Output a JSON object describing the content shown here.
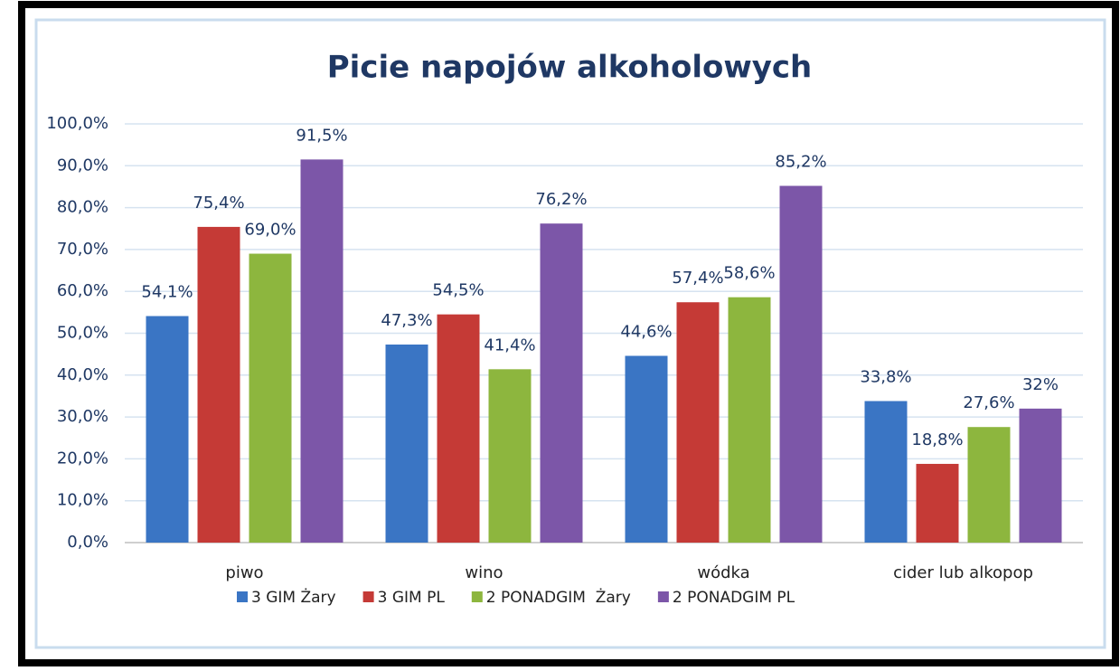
{
  "chart_data": {
    "type": "bar",
    "title": "Picie napojów alkoholowych",
    "categories": [
      "piwo",
      "wino",
      "wódka",
      "cider lub alkopop"
    ],
    "series": [
      {
        "name": "3 GIM Żary",
        "color": "#3a75c4",
        "values": [
          54.1,
          47.3,
          44.6,
          33.8
        ],
        "value_labels": [
          "54,1%",
          "47,3%",
          "44,6%",
          "33,8%"
        ]
      },
      {
        "name": "3 GIM PL",
        "color": "#c53a36",
        "values": [
          75.4,
          54.5,
          57.4,
          18.8
        ],
        "value_labels": [
          "75,4%",
          "54,5%",
          "57,4%",
          "18,8%"
        ]
      },
      {
        "name": "2 PONADGIM  Żary",
        "color": "#8db63e",
        "values": [
          69.0,
          41.4,
          58.6,
          27.6
        ],
        "value_labels": [
          "69,0%",
          "41,4%",
          "58,6%",
          "27,6%"
        ]
      },
      {
        "name": "2 PONADGIM PL",
        "color": "#7c56a8",
        "values": [
          91.5,
          76.2,
          85.2,
          32
        ],
        "value_labels": [
          "91,5%",
          "76,2%",
          "85,2%",
          "32%"
        ]
      }
    ],
    "ylim": [
      0,
      100
    ],
    "yticks": [
      {
        "value": 0,
        "label": "0,0%"
      },
      {
        "value": 10,
        "label": "10,0%"
      },
      {
        "value": 20,
        "label": "20,0%"
      },
      {
        "value": 30,
        "label": "30,0%"
      },
      {
        "value": 40,
        "label": "40,0%"
      },
      {
        "value": 50,
        "label": "50,0%"
      },
      {
        "value": 60,
        "label": "60,0%"
      },
      {
        "value": 70,
        "label": "70,0%"
      },
      {
        "value": 80,
        "label": "80,0%"
      },
      {
        "value": 90,
        "label": "90,0%"
      },
      {
        "value": 100,
        "label": "100,0%"
      }
    ],
    "grid": true,
    "legend": "bottom"
  }
}
